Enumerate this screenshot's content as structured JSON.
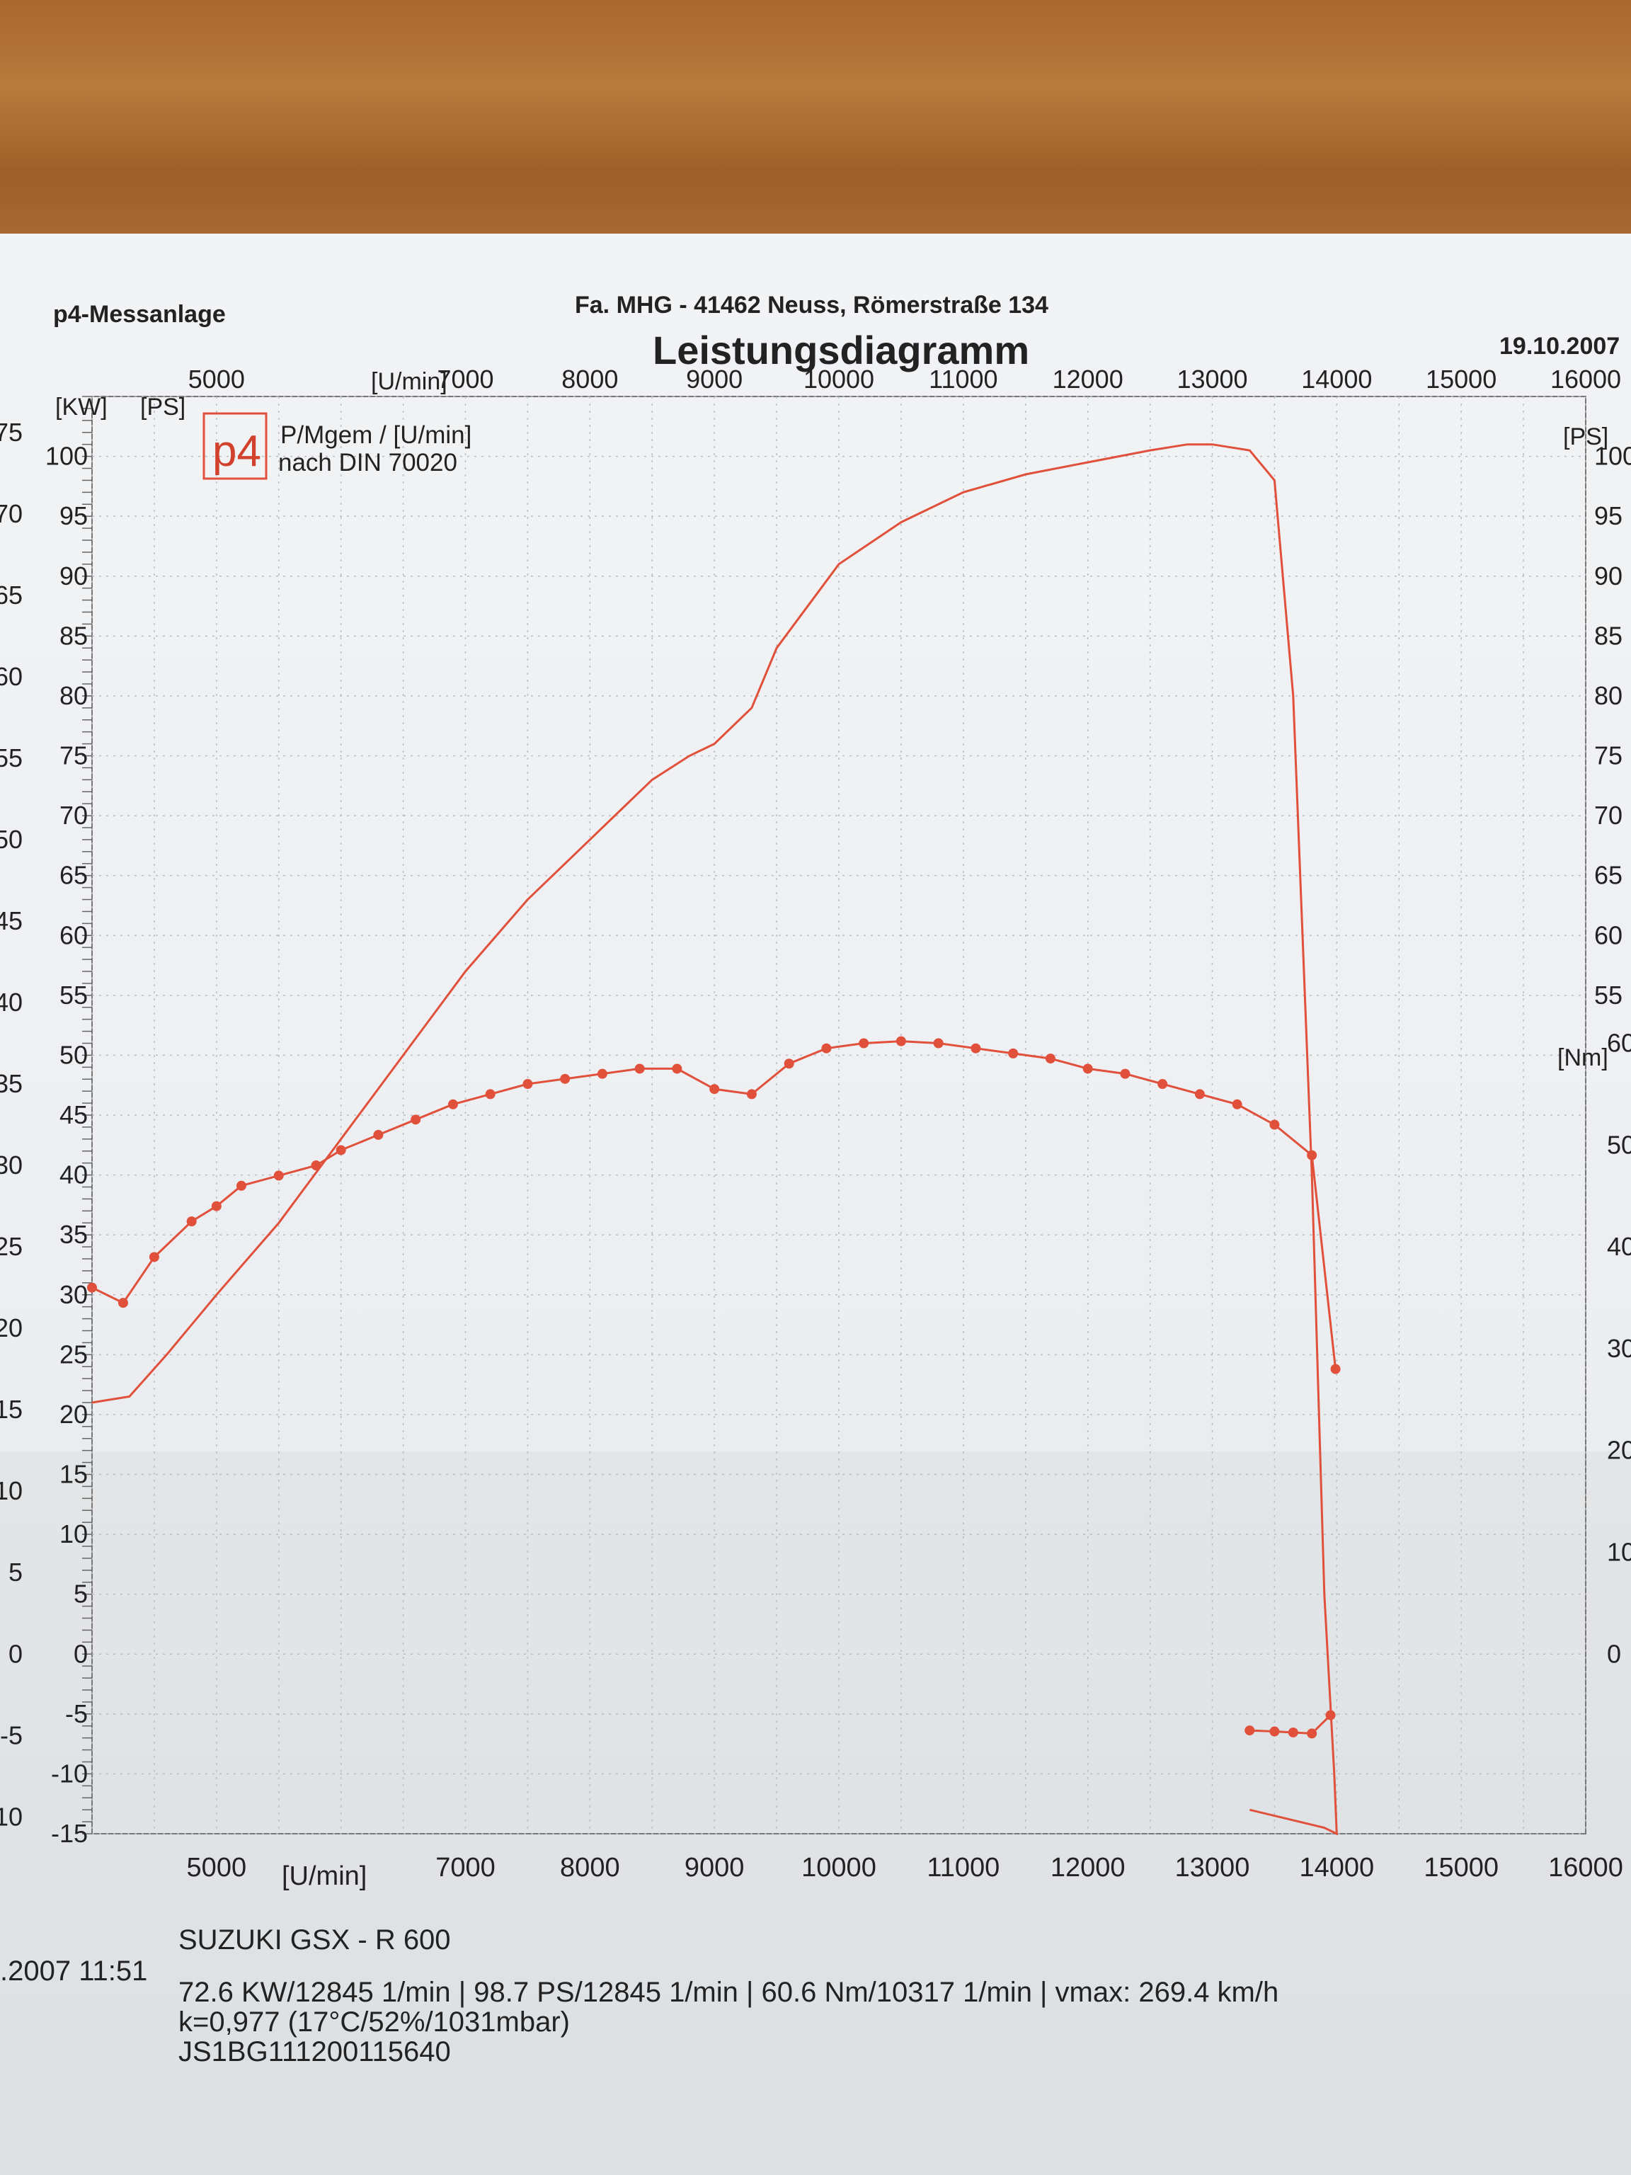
{
  "header": {
    "left": "p4-Messanlage",
    "center": "Fa. MHG -  41462 Neuss, Römerstraße 134",
    "title": "Leistungsdiagramm",
    "date": "19.10.2007"
  },
  "legend": {
    "logo_text": "p4",
    "line1": "P/Mgem / [U/min]",
    "line2": "nach DIN 70020"
  },
  "axes": {
    "left_kw_unit": "[KW]",
    "left_ps_unit": "[PS]",
    "right_ps_unit": "[PS]",
    "right_nm_unit": "[Nm]",
    "rpm_unit": "[U/min]"
  },
  "footer": {
    "date_time": ".2007  11:51",
    "model": "SUZUKI GSX - R 600",
    "stats": "72.6 KW/12845 1/min  |  98.7 PS/12845 1/min  |  60.6 Nm/10317 1/min | vmax: 269.4 km/h",
    "conditions": "k=0,977 (17°C/52%/1031mbar)",
    "vin": "JS1BG111200115640"
  },
  "chart_data": {
    "type": "line",
    "title": "Leistungsdiagramm",
    "xlabel": "[U/min]",
    "ylabel": "[PS]",
    "xlim": [
      4000,
      16000
    ],
    "ylim": [
      -15,
      105
    ],
    "grid": true,
    "legend_position": "top-left",
    "x_ticks": [
      5000,
      7000,
      8000,
      9000,
      10000,
      11000,
      12000,
      13000,
      14000,
      15000,
      16000
    ],
    "y_ps_ticks": [
      -15,
      -10,
      -5,
      0,
      5,
      10,
      15,
      20,
      25,
      30,
      35,
      40,
      45,
      50,
      55,
      60,
      65,
      70,
      75,
      80,
      85,
      90,
      95,
      100
    ],
    "y_kw_ticks": [
      -10,
      -5,
      0,
      5,
      10,
      15,
      20,
      25,
      30,
      35,
      40,
      45,
      50,
      55,
      60,
      65,
      70,
      75
    ],
    "y_right_ps_ticks": [
      55,
      60,
      65,
      70,
      75,
      80,
      85,
      90,
      95,
      100
    ],
    "y_right_nm_ticks": [
      0,
      10,
      20,
      30,
      40,
      50,
      60
    ],
    "series": [
      {
        "name": "P [PS]",
        "color": "#e0503a",
        "x": [
          4000,
          4300,
          4600,
          5000,
          5500,
          6000,
          6500,
          7000,
          7500,
          8000,
          8500,
          8800,
          9000,
          9300,
          9500,
          10000,
          10500,
          11000,
          11500,
          12000,
          12500,
          12800,
          13000,
          13300,
          13500,
          13650,
          13800,
          13900,
          13980,
          14000,
          13900,
          13700,
          13300
        ],
        "y": [
          21,
          21.5,
          25,
          30,
          36,
          43,
          50,
          57,
          63,
          68,
          73,
          75,
          76,
          79,
          84,
          91,
          94.5,
          97,
          98.5,
          99.5,
          100.5,
          101,
          101,
          100.5,
          98,
          80,
          40,
          5,
          -10,
          -15,
          -14.5,
          -14,
          -13
        ]
      },
      {
        "name": "Mgem [Nm]",
        "color": "#e0503a",
        "x": [
          4000,
          4250,
          4500,
          4800,
          5000,
          5200,
          5500,
          5800,
          6000,
          6300,
          6600,
          6900,
          7200,
          7500,
          7800,
          8100,
          8400,
          8700,
          9000,
          9300,
          9600,
          9900,
          10200,
          10500,
          10800,
          11100,
          11400,
          11700,
          12000,
          12300,
          12600,
          12900,
          13200,
          13500,
          13800,
          13990
        ],
        "y": [
          36,
          34.5,
          39,
          42.5,
          44,
          46,
          47,
          48,
          49.5,
          51,
          52.5,
          54,
          55,
          56,
          56.5,
          57,
          57.5,
          57.5,
          55.5,
          55,
          58,
          59.5,
          60,
          60.2,
          60,
          59.5,
          59,
          58.5,
          57.5,
          57,
          56,
          55,
          54,
          52,
          49,
          28
        ]
      },
      {
        "name": "Mgem [Nm] (low)",
        "color": "#e0503a",
        "x": [
          13300,
          13500,
          13650,
          13800,
          13950
        ],
        "y": [
          -7.5,
          -7.6,
          -7.7,
          -7.8,
          -6
        ]
      }
    ]
  }
}
